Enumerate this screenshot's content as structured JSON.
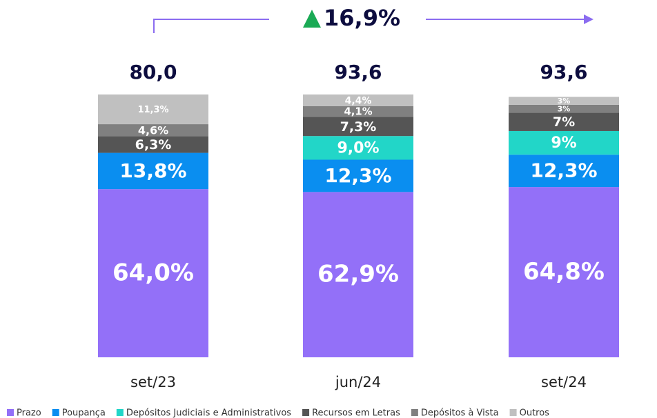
{
  "chart_data": {
    "type": "stacked_bar",
    "annotation": "16,9%",
    "categories": [
      "set/23",
      "jun/24",
      "set/24"
    ],
    "totals": {
      "values": [
        80.0,
        93.6,
        93.6
      ],
      "value_labels": [
        "80,0",
        "93,6",
        "93,6"
      ]
    },
    "ylim": [
      0,
      100
    ],
    "legend": "bottom",
    "series": [
      {
        "name": "Prazo",
        "color": "#9370f8",
        "values": [
          64.0,
          62.9,
          64.8
        ],
        "value_labels": [
          "64,0%",
          "62,9%",
          "64,8%"
        ]
      },
      {
        "name": "Poupança",
        "color": "#0a8ef0",
        "values": [
          13.8,
          12.3,
          12.3
        ],
        "value_labels": [
          "13,8%",
          "12,3%",
          "12,3%"
        ]
      },
      {
        "name": "Depósitos Judiciais e Administrativos",
        "color": "#22d6c8",
        "values": [
          null,
          9.0,
          9
        ],
        "value_labels": [
          null,
          "9,0%",
          "9%"
        ]
      },
      {
        "name": "Recursos em Letras",
        "color": "#555555",
        "values": [
          6.3,
          7.3,
          7
        ],
        "value_labels": [
          "6,3%",
          "7,3%",
          "7%"
        ]
      },
      {
        "name": "Depósitos à Vista",
        "color": "#808080",
        "values": [
          4.6,
          4.1,
          3
        ],
        "value_labels": [
          "4,6%",
          "4,1%",
          "3%"
        ]
      },
      {
        "name": "Outros",
        "color": "#c0c0c0",
        "values": [
          11.3,
          4.4,
          3
        ],
        "value_labels": [
          "11,3%",
          "4,4%",
          "3%"
        ]
      }
    ]
  }
}
